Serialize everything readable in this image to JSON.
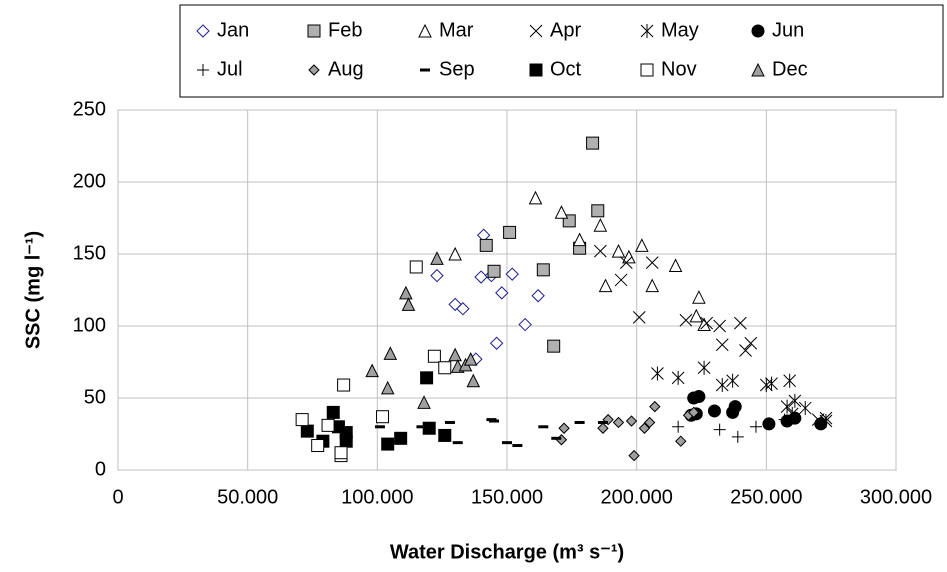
{
  "chart_data": {
    "type": "scatter",
    "xlabel": "Water Discharge (m³ s⁻¹)",
    "ylabel": "SSC (mg l⁻¹)",
    "xlim": [
      0,
      300000
    ],
    "ylim": [
      0,
      250
    ],
    "xticks": [
      0,
      {
        "value": 50000,
        "label": "50.000"
      },
      {
        "value": 100000,
        "label": "100.000"
      },
      {
        "value": 150000,
        "label": "150.000"
      },
      {
        "value": 200000,
        "label": "200.000"
      },
      {
        "value": 250000,
        "label": "250.000"
      },
      {
        "value": 300000,
        "label": "300.000"
      }
    ],
    "yticks": [
      0,
      50,
      100,
      150,
      200,
      250
    ],
    "grid": true,
    "legend": "top",
    "series": [
      {
        "name": "Jan",
        "marker": "diamond-open",
        "color": "#1f1f8f",
        "x": [
          123000,
          130000,
          133000,
          138000,
          140000,
          141000,
          144000,
          146000,
          148000,
          152000,
          157000,
          162000
        ],
        "values": [
          135,
          115,
          112,
          77,
          134,
          163,
          135,
          88,
          123,
          136,
          101,
          121
        ]
      },
      {
        "name": "Feb",
        "marker": "square",
        "color": "#b0b0b0",
        "x": [
          142000,
          145000,
          151000,
          164000,
          168000,
          174000,
          178000,
          183000,
          185000
        ],
        "values": [
          156,
          138,
          165,
          139,
          86,
          173,
          154,
          227,
          180
        ]
      },
      {
        "name": "Mar",
        "marker": "triangle-open",
        "color": "#ffffff",
        "x": [
          130000,
          161000,
          171000,
          178000,
          186000,
          188000,
          193000,
          197000,
          202000,
          206000,
          215000,
          223000,
          224000,
          226000
        ],
        "values": [
          150,
          189,
          179,
          160,
          170,
          128,
          152,
          148,
          156,
          128,
          142,
          107,
          120,
          101
        ]
      },
      {
        "name": "Apr",
        "marker": "x",
        "color": "#000000",
        "x": [
          186000,
          194000,
          196000,
          201000,
          206000,
          219000,
          227000,
          232000,
          233000,
          240000,
          242000,
          244000,
          270000,
          273000
        ],
        "values": [
          152,
          132,
          144,
          106,
          144,
          104,
          102,
          100,
          87,
          102,
          83,
          88,
          35,
          36
        ]
      },
      {
        "name": "May",
        "marker": "star",
        "color": "#000000",
        "x": [
          208000,
          216000,
          226000,
          233000,
          237000,
          250000,
          252000,
          258000,
          259000,
          260000,
          261000,
          265000,
          273000
        ],
        "values": [
          67,
          64,
          71,
          59,
          62,
          59,
          60,
          44,
          62,
          39,
          48,
          43,
          34
        ]
      },
      {
        "name": "Jun",
        "marker": "circle",
        "color": "#000000",
        "x": [
          221000,
          222000,
          223000,
          224000,
          230000,
          237000,
          238000,
          251000,
          258000,
          261000,
          271000
        ],
        "values": [
          38,
          50,
          39,
          51,
          41,
          40,
          44,
          32,
          34,
          36,
          32
        ]
      },
      {
        "name": "Jul",
        "marker": "plus",
        "color": "#000000",
        "x": [
          216000,
          232000,
          239000,
          246000,
          257000
        ],
        "values": [
          30,
          28,
          23,
          30,
          35
        ]
      },
      {
        "name": "Aug",
        "marker": "diamond",
        "color": "#a0a0a0",
        "x": [
          171000,
          172000,
          187000,
          189000,
          193000,
          198000,
          199000,
          203000,
          205000,
          207000,
          217000,
          220000,
          222000
        ],
        "values": [
          21,
          29,
          29,
          35,
          33,
          34,
          10,
          29,
          33,
          44,
          20,
          38,
          40
        ]
      },
      {
        "name": "Sep",
        "marker": "dash",
        "color": "#000000",
        "x": [
          101000,
          117000,
          128000,
          131000,
          144000,
          145000,
          150000,
          154000,
          164000,
          169000,
          178000,
          187000
        ],
        "values": [
          30,
          30,
          33,
          19,
          35,
          34,
          19,
          17,
          30,
          22,
          33,
          33
        ]
      },
      {
        "name": "Oct",
        "marker": "square",
        "color": "#000000",
        "x": [
          73000,
          79000,
          83000,
          85000,
          88000,
          88000,
          104000,
          109000,
          119000,
          120000,
          126000
        ],
        "values": [
          27,
          20,
          40,
          30,
          26,
          20,
          18,
          22,
          64,
          29,
          24
        ]
      },
      {
        "name": "Nov",
        "marker": "square",
        "color": "#ffffff",
        "x": [
          71000,
          77000,
          81000,
          86000,
          86000,
          87000,
          102000,
          115000,
          122000,
          126000
        ],
        "values": [
          35,
          17,
          31,
          10,
          12,
          59,
          37,
          141,
          79,
          71
        ]
      },
      {
        "name": "Dec",
        "marker": "triangle",
        "color": "#a0a0a0",
        "x": [
          98000,
          104000,
          105000,
          111000,
          112000,
          118000,
          123000,
          130000,
          131000,
          134000,
          136000,
          137000
        ],
        "values": [
          69,
          57,
          81,
          123,
          115,
          47,
          147,
          80,
          72,
          73,
          77,
          62
        ]
      }
    ]
  }
}
